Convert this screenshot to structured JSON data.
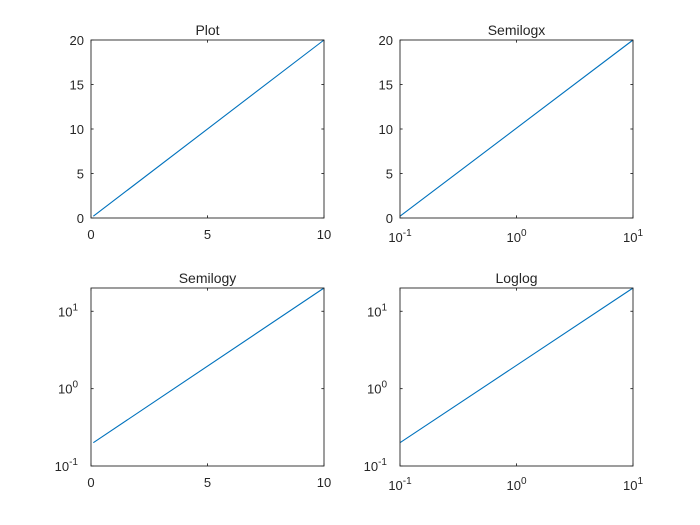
{
  "chart_data": [
    {
      "type": "line",
      "title": "Plot",
      "xscale": "linear",
      "yscale": "linear",
      "xlim": [
        0,
        10
      ],
      "ylim": [
        0,
        20
      ],
      "xticks": [
        0,
        5,
        10
      ],
      "xtick_labels": [
        "0",
        "5",
        "10"
      ],
      "yticks": [
        0,
        5,
        10,
        15,
        20
      ],
      "ytick_labels": [
        "0",
        "5",
        "10",
        "15",
        "20"
      ],
      "grid": false,
      "series": [
        {
          "x": [
            0.1,
            10
          ],
          "y": [
            0.2,
            20
          ],
          "color": "#0072bd"
        }
      ]
    },
    {
      "type": "line",
      "title": "Semilogx",
      "xscale": "log",
      "yscale": "linear",
      "xlim": [
        0.1,
        10
      ],
      "ylim": [
        0,
        20
      ],
      "xticks": [
        0.1,
        1,
        10
      ],
      "xtick_labels": [
        {
          "base": "10",
          "exp": "-1"
        },
        {
          "base": "10",
          "exp": "0"
        },
        {
          "base": "10",
          "exp": "1"
        }
      ],
      "yticks": [
        0,
        5,
        10,
        15,
        20
      ],
      "ytick_labels": [
        "0",
        "5",
        "10",
        "15",
        "20"
      ],
      "grid": false,
      "series": [
        {
          "x": [
            0.1,
            10
          ],
          "y": [
            0.2,
            20
          ],
          "color": "#0072bd"
        }
      ]
    },
    {
      "type": "line",
      "title": "Semilogy",
      "xscale": "linear",
      "yscale": "log",
      "xlim": [
        0,
        10
      ],
      "ylim": [
        0.1,
        20
      ],
      "xticks": [
        0,
        5,
        10
      ],
      "xtick_labels": [
        "0",
        "5",
        "10"
      ],
      "yticks": [
        0.1,
        1,
        10
      ],
      "ytick_labels": [
        {
          "base": "10",
          "exp": "-1"
        },
        {
          "base": "10",
          "exp": "0"
        },
        {
          "base": "10",
          "exp": "1"
        }
      ],
      "grid": false,
      "series": [
        {
          "x": [
            0.1,
            10
          ],
          "y": [
            0.2,
            20
          ],
          "color": "#0072bd"
        }
      ]
    },
    {
      "type": "line",
      "title": "Loglog",
      "xscale": "log",
      "yscale": "log",
      "xlim": [
        0.1,
        10
      ],
      "ylim": [
        0.1,
        20
      ],
      "xticks": [
        0.1,
        1,
        10
      ],
      "xtick_labels": [
        {
          "base": "10",
          "exp": "-1"
        },
        {
          "base": "10",
          "exp": "0"
        },
        {
          "base": "10",
          "exp": "1"
        }
      ],
      "yticks": [
        0.1,
        1,
        10
      ],
      "ytick_labels": [
        {
          "base": "10",
          "exp": "-1"
        },
        {
          "base": "10",
          "exp": "0"
        },
        {
          "base": "10",
          "exp": "1"
        }
      ],
      "grid": false,
      "series": [
        {
          "x": [
            0.1,
            10
          ],
          "y": [
            0.2,
            20
          ],
          "color": "#0072bd"
        }
      ]
    }
  ]
}
